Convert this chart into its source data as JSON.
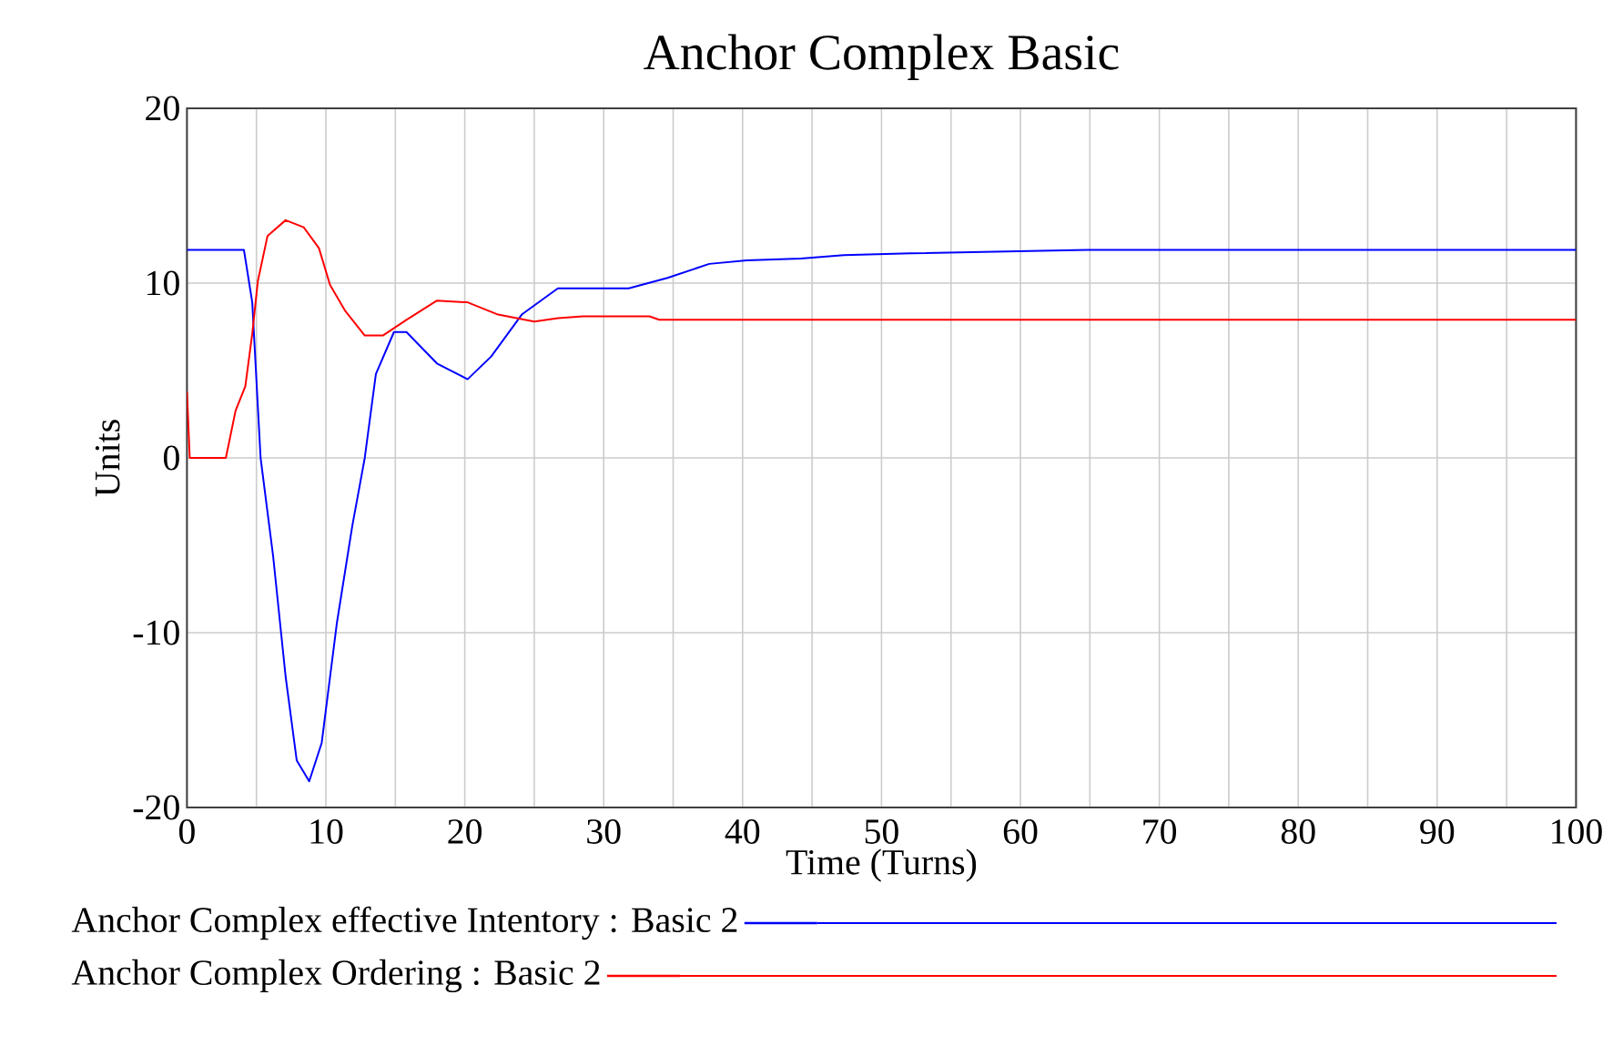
{
  "chart_data": {
    "type": "line",
    "title": "Anchor Complex Basic",
    "xlabel": "Time (Turns)",
    "ylabel": "Units",
    "xlim": [
      0,
      100
    ],
    "ylim": [
      -20,
      20
    ],
    "xticks": [
      0,
      {
        "value": 5,
        "label": null
      },
      10,
      {
        "value": 15,
        "label": null
      },
      20,
      {
        "value": 25,
        "label": null
      },
      30,
      {
        "value": 35,
        "label": null
      },
      40,
      {
        "value": 45,
        "label": null
      },
      50,
      {
        "value": 55,
        "label": null
      },
      60,
      {
        "value": 65,
        "label": null
      },
      70,
      {
        "value": 75,
        "label": null
      },
      80,
      {
        "value": 85,
        "label": null
      },
      90,
      {
        "value": 95,
        "label": null
      },
      100
    ],
    "yticks": [
      -20,
      -10,
      0,
      10,
      20
    ],
    "grid": true,
    "legend": "bottom",
    "marker": "none",
    "line_style": "solid",
    "series": [
      {
        "name": "Anchor Complex effective Intentory : Basic 2",
        "color": "#0000ff",
        "x": [
          0,
          4.1,
          4.7,
          5.3,
          6.2,
          7.1,
          7.9,
          8.8,
          9.7,
          10.8,
          11.9,
          12.8,
          13.6,
          14.9,
          15.8,
          18,
          20.2,
          21.9,
          24.1,
          26.7,
          31.8,
          34.6,
          37.6,
          40.3,
          44.2,
          47.3,
          52.1,
          64.8,
          100
        ],
        "values": [
          11.9,
          11.9,
          8.9,
          0,
          -5.6,
          -12.5,
          -17.3,
          -18.5,
          -16.3,
          -9.4,
          -3.9,
          0,
          4.8,
          7.2,
          7.2,
          5.4,
          4.5,
          5.8,
          8.2,
          9.7,
          9.7,
          10.3,
          11.1,
          11.3,
          11.4,
          11.6,
          11.7,
          11.9,
          11.9
        ]
      },
      {
        "name": "Anchor Complex Ordering : Basic 2",
        "color": "#ff0000",
        "x": [
          0,
          0.2,
          2.8,
          3.5,
          4.2,
          4.7,
          5.1,
          5.8,
          7.1,
          8.4,
          9.5,
          10.3,
          11.4,
          12.8,
          14.1,
          15.8,
          18,
          20.2,
          22.4,
          25,
          26.7,
          28.5,
          33.3,
          34,
          100
        ],
        "values": [
          3.8,
          0,
          0,
          2.7,
          4.1,
          7.1,
          10.1,
          12.7,
          13.6,
          13.2,
          12,
          9.9,
          8.4,
          7,
          7,
          7.9,
          9,
          8.9,
          8.2,
          7.8,
          8,
          8.1,
          8.1,
          7.9,
          7.9
        ]
      }
    ]
  }
}
